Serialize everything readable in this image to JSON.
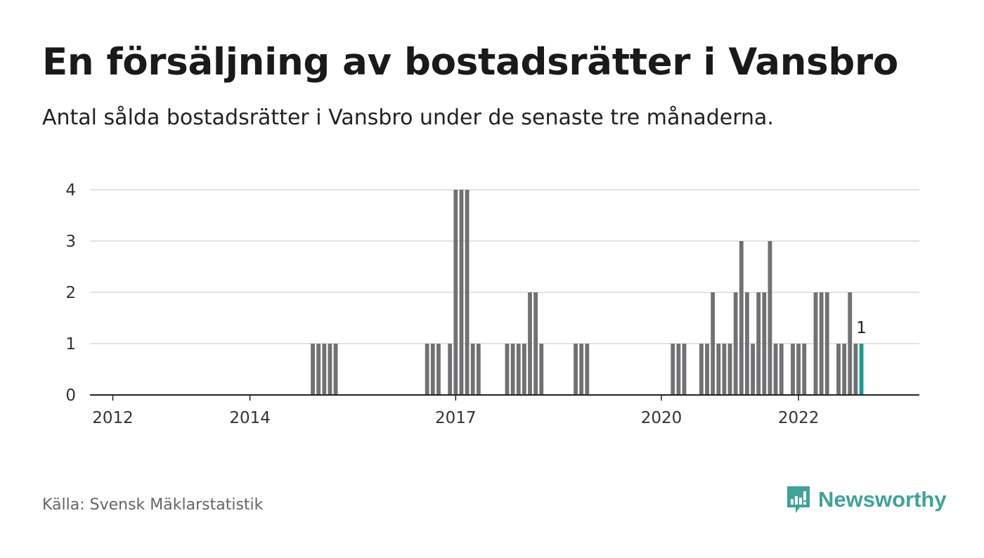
{
  "title": "En försäljning av bostadsrätter i Vansbro",
  "subtitle": "Antal sålda bostadsrätter i Vansbro under de senaste tre månaderna.",
  "source": "Källa: Svensk Mäklarstatistik",
  "brand": "Newsworthy",
  "colors": {
    "bar": "#717073",
    "highlight": "#1a9c8c",
    "grid": "#d9d9d9",
    "axis": "#222222",
    "brand": "#3fa39a"
  },
  "chart_data": {
    "type": "bar",
    "x_unit": "month",
    "x_start": "2011-09",
    "x_end": "2023-10",
    "ylim": [
      0,
      4
    ],
    "yticks": [
      0,
      1,
      2,
      3,
      4
    ],
    "xticks": [
      "2012",
      "2014",
      "2017",
      "2020",
      "2022"
    ],
    "grid": true,
    "highlight_label": "1",
    "bars": [
      {
        "month": "2014-12",
        "value": 1
      },
      {
        "month": "2015-01",
        "value": 1
      },
      {
        "month": "2015-02",
        "value": 1
      },
      {
        "month": "2015-03",
        "value": 1
      },
      {
        "month": "2015-04",
        "value": 1
      },
      {
        "month": "2016-08",
        "value": 1
      },
      {
        "month": "2016-09",
        "value": 1
      },
      {
        "month": "2016-10",
        "value": 1
      },
      {
        "month": "2016-12",
        "value": 1
      },
      {
        "month": "2017-01",
        "value": 4
      },
      {
        "month": "2017-02",
        "value": 4
      },
      {
        "month": "2017-03",
        "value": 4
      },
      {
        "month": "2017-04",
        "value": 1
      },
      {
        "month": "2017-05",
        "value": 1
      },
      {
        "month": "2017-10",
        "value": 1
      },
      {
        "month": "2017-11",
        "value": 1
      },
      {
        "month": "2017-12",
        "value": 1
      },
      {
        "month": "2018-01",
        "value": 1
      },
      {
        "month": "2018-02",
        "value": 2
      },
      {
        "month": "2018-03",
        "value": 2
      },
      {
        "month": "2018-04",
        "value": 1
      },
      {
        "month": "2018-10",
        "value": 1
      },
      {
        "month": "2018-11",
        "value": 1
      },
      {
        "month": "2018-12",
        "value": 1
      },
      {
        "month": "2020-03",
        "value": 1
      },
      {
        "month": "2020-04",
        "value": 1
      },
      {
        "month": "2020-05",
        "value": 1
      },
      {
        "month": "2020-08",
        "value": 1
      },
      {
        "month": "2020-09",
        "value": 1
      },
      {
        "month": "2020-10",
        "value": 2
      },
      {
        "month": "2020-11",
        "value": 1
      },
      {
        "month": "2020-12",
        "value": 1
      },
      {
        "month": "2021-01",
        "value": 1
      },
      {
        "month": "2021-02",
        "value": 2
      },
      {
        "month": "2021-03",
        "value": 3
      },
      {
        "month": "2021-04",
        "value": 2
      },
      {
        "month": "2021-05",
        "value": 1
      },
      {
        "month": "2021-06",
        "value": 2
      },
      {
        "month": "2021-07",
        "value": 2
      },
      {
        "month": "2021-08",
        "value": 3
      },
      {
        "month": "2021-09",
        "value": 1
      },
      {
        "month": "2021-10",
        "value": 1
      },
      {
        "month": "2021-12",
        "value": 1
      },
      {
        "month": "2022-01",
        "value": 1
      },
      {
        "month": "2022-02",
        "value": 1
      },
      {
        "month": "2022-04",
        "value": 2
      },
      {
        "month": "2022-05",
        "value": 2
      },
      {
        "month": "2022-06",
        "value": 2
      },
      {
        "month": "2022-08",
        "value": 1
      },
      {
        "month": "2022-09",
        "value": 1
      },
      {
        "month": "2022-10",
        "value": 2
      },
      {
        "month": "2022-11",
        "value": 1
      },
      {
        "month": "2022-12",
        "value": 1,
        "highlight": true
      }
    ]
  }
}
